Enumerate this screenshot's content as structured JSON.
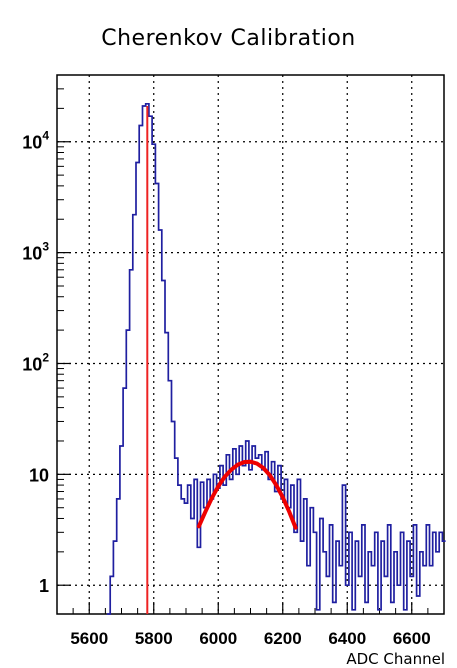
{
  "chart_data": {
    "type": "line",
    "title": "Cherenkov Calibration",
    "xlabel": "ADC Channel",
    "ylabel": "",
    "xlim": [
      5500,
      6700
    ],
    "ylim": [
      0.55,
      40000
    ],
    "y_scale": "log",
    "grid": true,
    "x_ticks": [
      5600,
      5800,
      6000,
      6200,
      6400,
      6600
    ],
    "x_tick_labels": [
      "5600",
      "5800",
      "6000",
      "6200",
      "6400",
      "6600"
    ],
    "y_ticks": [
      1,
      10,
      100,
      1000,
      10000
    ],
    "y_tick_labels": [
      {
        "base": "1",
        "sup": ""
      },
      {
        "base": "10",
        "sup": ""
      },
      {
        "base": "10",
        "sup": "2"
      },
      {
        "base": "10",
        "sup": "3"
      },
      {
        "base": "10",
        "sup": "4"
      }
    ],
    "series": [
      {
        "kind": "histogram",
        "color": "#1f1fa0",
        "points": [
          [
            5660,
            0.55
          ],
          [
            5670,
            1.2
          ],
          [
            5680,
            2.5
          ],
          [
            5690,
            6
          ],
          [
            5700,
            18
          ],
          [
            5710,
            60
          ],
          [
            5720,
            200
          ],
          [
            5730,
            700
          ],
          [
            5740,
            2200
          ],
          [
            5750,
            6500
          ],
          [
            5760,
            14000
          ],
          [
            5770,
            21000
          ],
          [
            5780,
            22000
          ],
          [
            5790,
            17000
          ],
          [
            5800,
            9500
          ],
          [
            5810,
            4200
          ],
          [
            5820,
            1600
          ],
          [
            5830,
            560
          ],
          [
            5840,
            190
          ],
          [
            5850,
            70
          ],
          [
            5860,
            30
          ],
          [
            5870,
            14
          ],
          [
            5880,
            8
          ],
          [
            5890,
            6
          ],
          [
            5900,
            5.5
          ],
          [
            5910,
            8
          ],
          [
            5920,
            4
          ],
          [
            5930,
            9
          ],
          [
            5940,
            2.2
          ],
          [
            5950,
            8.5
          ],
          [
            5960,
            5
          ],
          [
            5970,
            9
          ],
          [
            5980,
            6
          ],
          [
            5990,
            10
          ],
          [
            6000,
            7.5
          ],
          [
            6010,
            12
          ],
          [
            6020,
            8
          ],
          [
            6030,
            15
          ],
          [
            6040,
            9
          ],
          [
            6050,
            17
          ],
          [
            6060,
            10
          ],
          [
            6070,
            18
          ],
          [
            6080,
            12
          ],
          [
            6090,
            20
          ],
          [
            6100,
            11
          ],
          [
            6110,
            18
          ],
          [
            6120,
            14
          ],
          [
            6130,
            15
          ],
          [
            6140,
            11
          ],
          [
            6150,
            16
          ],
          [
            6160,
            9
          ],
          [
            6170,
            13
          ],
          [
            6180,
            7
          ],
          [
            6190,
            12
          ],
          [
            6200,
            6
          ],
          [
            6210,
            9
          ],
          [
            6220,
            5
          ],
          [
            6230,
            8
          ],
          [
            6240,
            3
          ],
          [
            6250,
            9
          ],
          [
            6260,
            2.5
          ],
          [
            6270,
            6
          ],
          [
            6280,
            1.5
          ],
          [
            6290,
            5
          ],
          [
            6300,
            3
          ],
          [
            6310,
            0.6
          ],
          [
            6320,
            4
          ],
          [
            6330,
            2
          ],
          [
            6340,
            1.2
          ],
          [
            6350,
            3.5
          ],
          [
            6360,
            0.7
          ],
          [
            6370,
            2.5
          ],
          [
            6380,
            1.5
          ],
          [
            6390,
            8
          ],
          [
            6400,
            1
          ],
          [
            6410,
            3
          ],
          [
            6420,
            0.6
          ],
          [
            6430,
            2.5
          ],
          [
            6440,
            1.2
          ],
          [
            6450,
            3.5
          ],
          [
            6460,
            0.7
          ],
          [
            6470,
            2
          ],
          [
            6480,
            1.5
          ],
          [
            6490,
            3
          ],
          [
            6500,
            0.6
          ],
          [
            6510,
            2.5
          ],
          [
            6520,
            1.2
          ],
          [
            6530,
            3.5
          ],
          [
            6540,
            0.7
          ],
          [
            6550,
            2
          ],
          [
            6560,
            1
          ],
          [
            6570,
            3
          ],
          [
            6580,
            0.6
          ],
          [
            6590,
            2.5
          ],
          [
            6600,
            1.2
          ],
          [
            6610,
            3.5
          ],
          [
            6620,
            0.8
          ],
          [
            6630,
            2
          ],
          [
            6640,
            1.5
          ],
          [
            6650,
            3.5
          ],
          [
            6660,
            1.5
          ],
          [
            6670,
            3
          ],
          [
            6680,
            2
          ],
          [
            6690,
            3
          ],
          [
            6700,
            2.5
          ]
        ]
      },
      {
        "kind": "fit-curve",
        "color": "#ee0000",
        "points": [
          [
            5940,
            3.4
          ],
          [
            5960,
            4.6
          ],
          [
            5980,
            6.1
          ],
          [
            6000,
            7.8
          ],
          [
            6020,
            9.5
          ],
          [
            6040,
            11.0
          ],
          [
            6060,
            12.2
          ],
          [
            6080,
            12.9
          ],
          [
            6100,
            13.0
          ],
          [
            6120,
            12.5
          ],
          [
            6140,
            11.4
          ],
          [
            6160,
            9.8
          ],
          [
            6180,
            8.0
          ],
          [
            6200,
            6.2
          ],
          [
            6220,
            4.6
          ],
          [
            6240,
            3.3
          ]
        ]
      }
    ],
    "markers": [
      {
        "kind": "vertical-line",
        "x": 5780,
        "color": "#ee2222"
      }
    ]
  }
}
